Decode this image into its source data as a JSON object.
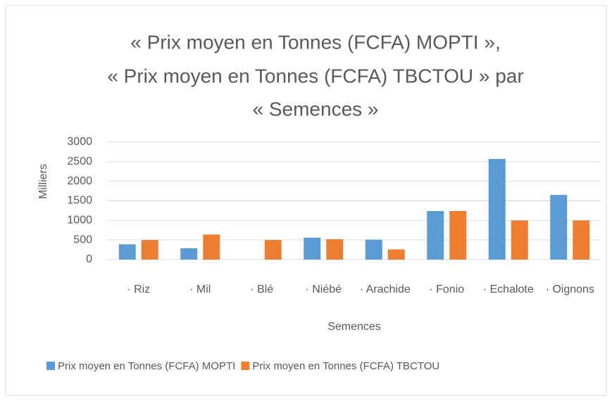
{
  "chart_data": {
    "type": "bar",
    "title": [
      "« Prix moyen en Tonnes (FCFA) MOPTI »,",
      "« Prix moyen en Tonnes (FCFA) TBCTOU » par",
      "« Semences »"
    ],
    "x_label": "Semences",
    "y_label": "Milliers",
    "categories": [
      "· Riz",
      "· Mil",
      "· Blé",
      "· Niébé",
      "· Arachide",
      "· Fonio",
      "· Echalote",
      "· Oignons"
    ],
    "series": [
      {
        "name": "Prix moyen en Tonnes (FCFA) MOPTI",
        "color": "#5b9bd5",
        "values": [
          390,
          290,
          null,
          560,
          510,
          1240,
          2570,
          1650
        ]
      },
      {
        "name": "Prix moyen en Tonnes (FCFA) TBCTOU",
        "color": "#ed7d31",
        "values": [
          500,
          640,
          500,
          520,
          260,
          1240,
          1000,
          1000
        ]
      }
    ],
    "ylim": [
      0,
      3000
    ],
    "yticks": [
      0,
      500,
      1000,
      1500,
      2000,
      2500,
      3000
    ],
    "grid": true,
    "legend": "bottom"
  }
}
